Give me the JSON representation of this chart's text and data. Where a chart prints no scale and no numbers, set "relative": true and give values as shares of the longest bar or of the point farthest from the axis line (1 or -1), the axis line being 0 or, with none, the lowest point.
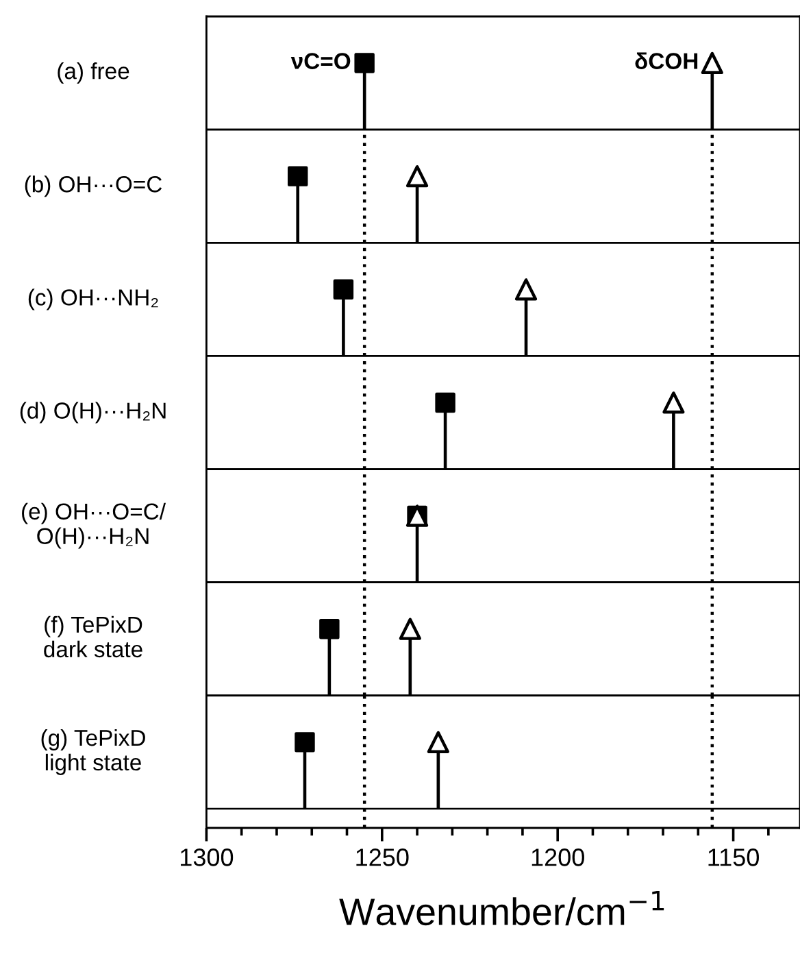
{
  "chart_data": [
    {
      "type": "bar",
      "ylabel": "(a) free",
      "relative": true,
      "tick_labels": false,
      "xlim": [
        1300,
        1131
      ],
      "series": [
        {
          "x": [
            1255,
            1156
          ],
          "values": [
            0.88,
            0.88
          ],
          "color": "#000000"
        },
        {
          "type": "scatter",
          "x": [
            1255
          ],
          "values": [
            1
          ],
          "color": "#000000",
          "marker": "square"
        },
        {
          "type": "scatter",
          "x": [
            1156
          ],
          "values": [
            1
          ],
          "color": "#ffffff",
          "marker": "triangle"
        }
      ],
      "annotations": [
        {
          "text": "νC=O",
          "x": 1255,
          "y": 1
        },
        {
          "text": "δCOH",
          "x": 1156,
          "y": 1
        }
      ]
    },
    {
      "type": "bar",
      "ylabel": "(b) OH···O=C",
      "relative": true,
      "tick_labels": false,
      "xlim": [
        1300,
        1131
      ],
      "series": [
        {
          "x": [
            1274,
            1240
          ],
          "values": [
            0.88,
            0.88
          ],
          "color": "#000000"
        },
        {
          "type": "scatter",
          "x": [
            1274
          ],
          "values": [
            1
          ],
          "color": "#000000",
          "marker": "square"
        },
        {
          "type": "scatter",
          "x": [
            1240
          ],
          "values": [
            1
          ],
          "color": "#ffffff",
          "marker": "triangle"
        }
      ],
      "ref_lines": [
        {
          "axis": "x",
          "value": 1255,
          "line_style": "dotted"
        },
        {
          "axis": "x",
          "value": 1156,
          "line_style": "dotted"
        }
      ]
    },
    {
      "type": "bar",
      "ylabel": "(c) OH···NH₂",
      "relative": true,
      "tick_labels": false,
      "xlim": [
        1300,
        1131
      ],
      "series": [
        {
          "x": [
            1261,
            1209
          ],
          "values": [
            0.88,
            0.88
          ],
          "color": "#000000"
        },
        {
          "type": "scatter",
          "x": [
            1261
          ],
          "values": [
            1
          ],
          "color": "#000000",
          "marker": "square"
        },
        {
          "type": "scatter",
          "x": [
            1209
          ],
          "values": [
            1
          ],
          "color": "#ffffff",
          "marker": "triangle"
        }
      ],
      "ref_lines": [
        {
          "axis": "x",
          "value": 1255,
          "line_style": "dotted"
        },
        {
          "axis": "x",
          "value": 1156,
          "line_style": "dotted"
        }
      ]
    },
    {
      "type": "bar",
      "ylabel": "(d) O(H)···H₂N",
      "relative": true,
      "tick_labels": false,
      "xlim": [
        1300,
        1131
      ],
      "series": [
        {
          "x": [
            1232,
            1167
          ],
          "values": [
            0.88,
            0.88
          ],
          "color": "#000000"
        },
        {
          "type": "scatter",
          "x": [
            1232
          ],
          "values": [
            1
          ],
          "color": "#000000",
          "marker": "square"
        },
        {
          "type": "scatter",
          "x": [
            1167
          ],
          "values": [
            1
          ],
          "color": "#ffffff",
          "marker": "triangle"
        }
      ],
      "ref_lines": [
        {
          "axis": "x",
          "value": 1255,
          "line_style": "dotted"
        },
        {
          "axis": "x",
          "value": 1156,
          "line_style": "dotted"
        }
      ]
    },
    {
      "type": "bar",
      "ylabel": "(e) OH···O=C/\nO(H)···H₂N",
      "relative": true,
      "tick_labels": false,
      "xlim": [
        1300,
        1131
      ],
      "series": [
        {
          "x": [
            1240
          ],
          "values": [
            0.88
          ],
          "color": "#000000"
        },
        {
          "type": "scatter",
          "x": [
            1240
          ],
          "values": [
            1
          ],
          "color": "#000000",
          "marker": "square"
        },
        {
          "type": "scatter",
          "x": [
            1240
          ],
          "values": [
            1
          ],
          "color": "#ffffff",
          "marker": "triangle"
        }
      ],
      "ref_lines": [
        {
          "axis": "x",
          "value": 1255,
          "line_style": "dotted"
        },
        {
          "axis": "x",
          "value": 1156,
          "line_style": "dotted"
        }
      ]
    },
    {
      "type": "bar",
      "ylabel": "(f) TePixD\ndark state",
      "relative": true,
      "tick_labels": false,
      "xlim": [
        1300,
        1131
      ],
      "series": [
        {
          "x": [
            1265,
            1242
          ],
          "values": [
            0.88,
            0.88
          ],
          "color": "#000000"
        },
        {
          "type": "scatter",
          "x": [
            1265
          ],
          "values": [
            1
          ],
          "color": "#000000",
          "marker": "square"
        },
        {
          "type": "scatter",
          "x": [
            1242
          ],
          "values": [
            1
          ],
          "color": "#ffffff",
          "marker": "triangle"
        }
      ],
      "ref_lines": [
        {
          "axis": "x",
          "value": 1255,
          "line_style": "dotted"
        },
        {
          "axis": "x",
          "value": 1156,
          "line_style": "dotted"
        }
      ]
    },
    {
      "type": "bar",
      "ylabel": "(g) TePixD\nlight state",
      "relative": true,
      "tick_labels": "x",
      "xlim": [
        1300,
        1131
      ],
      "xlabel": "Wavenumber/cm$^{−1}$",
      "xticks": [
        1300,
        1250,
        1200,
        1150
      ],
      "series": [
        {
          "x": [
            1272,
            1234
          ],
          "values": [
            0.88,
            0.88
          ],
          "color": "#000000"
        },
        {
          "type": "scatter",
          "x": [
            1272
          ],
          "values": [
            1
          ],
          "color": "#000000",
          "marker": "square"
        },
        {
          "type": "scatter",
          "x": [
            1234
          ],
          "values": [
            1
          ],
          "color": "#ffffff",
          "marker": "triangle"
        }
      ],
      "ref_lines": [
        {
          "axis": "x",
          "value": 1255,
          "line_style": "dotted"
        },
        {
          "axis": "x",
          "value": 1156,
          "line_style": "dotted"
        }
      ]
    }
  ]
}
